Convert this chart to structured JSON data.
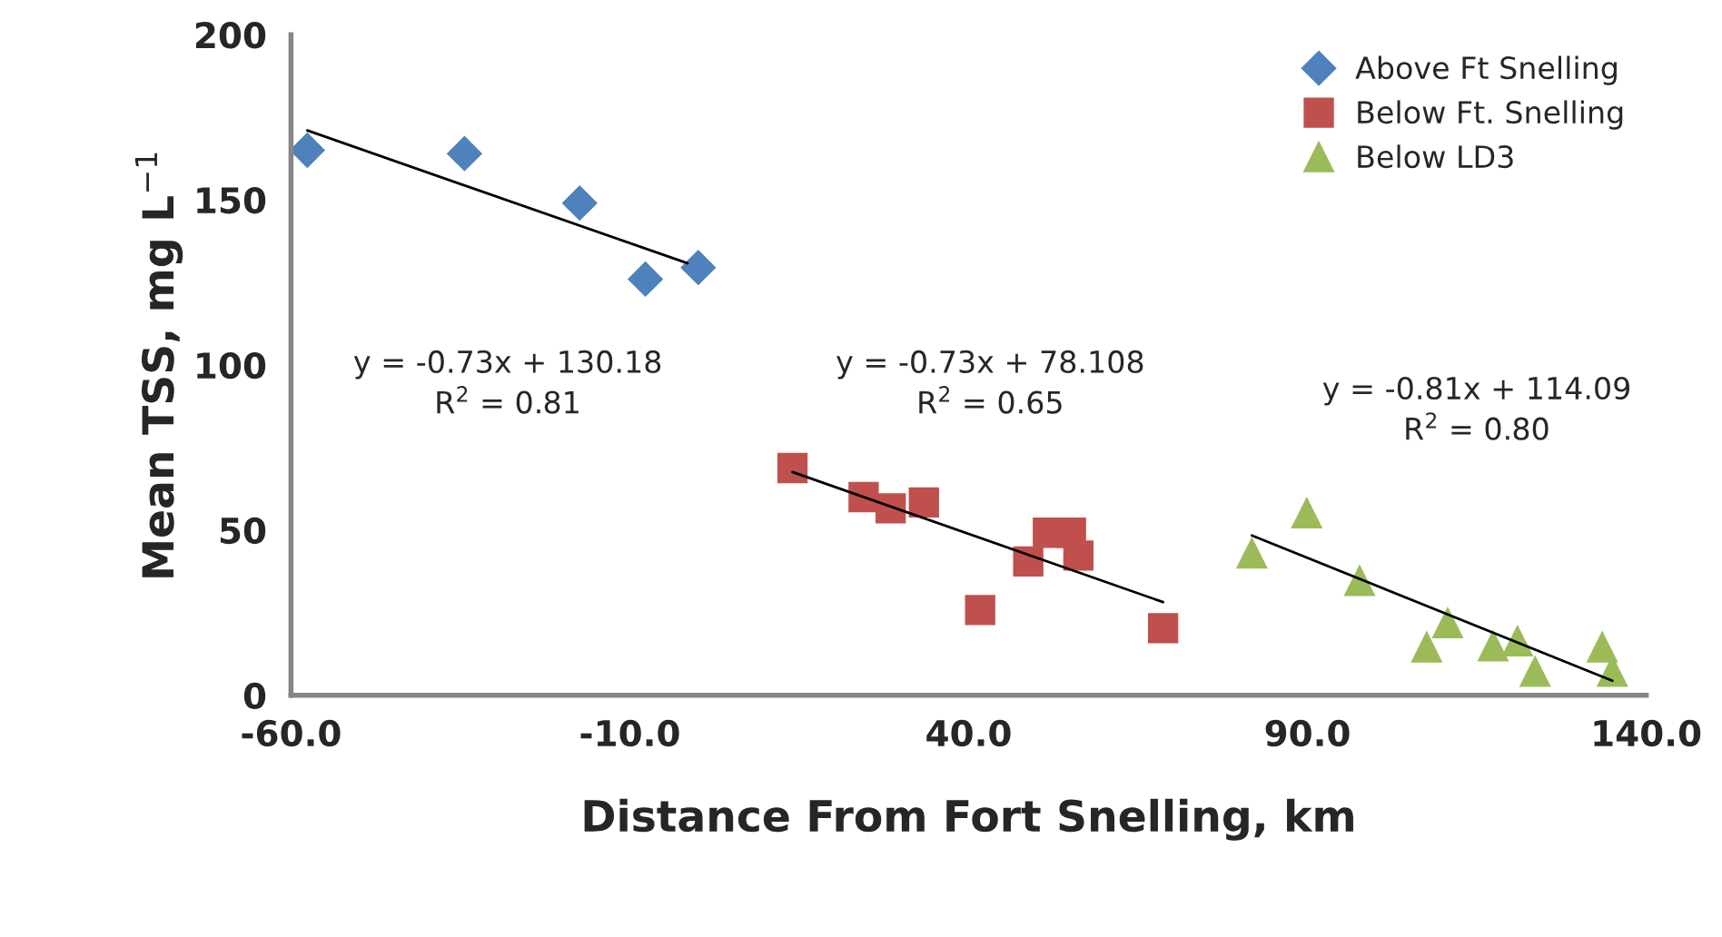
{
  "chart_data": {
    "type": "scatter",
    "xlabel": "Distance From Fort Snelling, km",
    "ylabel": "Mean TSS, mg L$^{−1}$",
    "xlim": [
      -60,
      140
    ],
    "xticks": [
      {
        "value": -60,
        "label": "-60.0"
      },
      {
        "value": -10,
        "label": "-10.0"
      },
      {
        "value": 40,
        "label": "40.0"
      },
      {
        "value": 90,
        "label": "90.0"
      },
      {
        "value": 140,
        "label": "140.0"
      }
    ],
    "ylim": [
      0,
      200
    ],
    "yticks": [
      0,
      50,
      100,
      150,
      200
    ],
    "grid": false,
    "legend": "top right",
    "series": [
      {
        "name": "Above Ft Snelling",
        "color": "#4f81bd",
        "marker": "diamond",
        "x": [
          -57.6,
          -34.4,
          -17.4,
          -7.7,
          0.1
        ],
        "values": [
          165,
          164,
          149,
          126,
          129.5
        ]
      },
      {
        "name": "Below Ft. Snelling",
        "color": "#c0504d",
        "marker": "square",
        "x": [
          14.0,
          24.5,
          28.5,
          33.4,
          41.7,
          48.8,
          51.7,
          55.1,
          56.2,
          68.7
        ],
        "values": [
          68.8,
          60,
          56.6,
          58.4,
          25.8,
          40.5,
          49.2,
          49.2,
          42.3,
          20.3
        ]
      },
      {
        "name": "Below LD3",
        "color": "#9bbb59",
        "marker": "triangle",
        "x": [
          81.8,
          89.9,
          97.7,
          107.6,
          110.7,
          117.4,
          121.0,
          123.6,
          133.5,
          135.0
        ],
        "values": [
          42.9,
          55.1,
          34.6,
          14.5,
          21.8,
          14.8,
          16.3,
          7.1,
          14.5,
          7.1
        ]
      },
      {
        "type": "line",
        "color": "#000000",
        "x": [
          -57.6,
          -1.5
        ],
        "values": [
          171,
          130.8
        ]
      },
      {
        "type": "line",
        "color": "#000000",
        "x": [
          14.0,
          68.7
        ],
        "values": [
          67.6,
          28.2
        ]
      },
      {
        "type": "line",
        "color": "#000000",
        "x": [
          81.8,
          135.0
        ],
        "values": [
          48.4,
          4.4
        ]
      }
    ],
    "annotations": [
      "y = -0.73x + 130.18\nR$^{2}$ = 0.81",
      "y = -0.73x + 78.108\nR$^{2}$ = 0.65",
      "y = -0.81x + 114.09\nR$^{2}$ = 0.80"
    ]
  }
}
